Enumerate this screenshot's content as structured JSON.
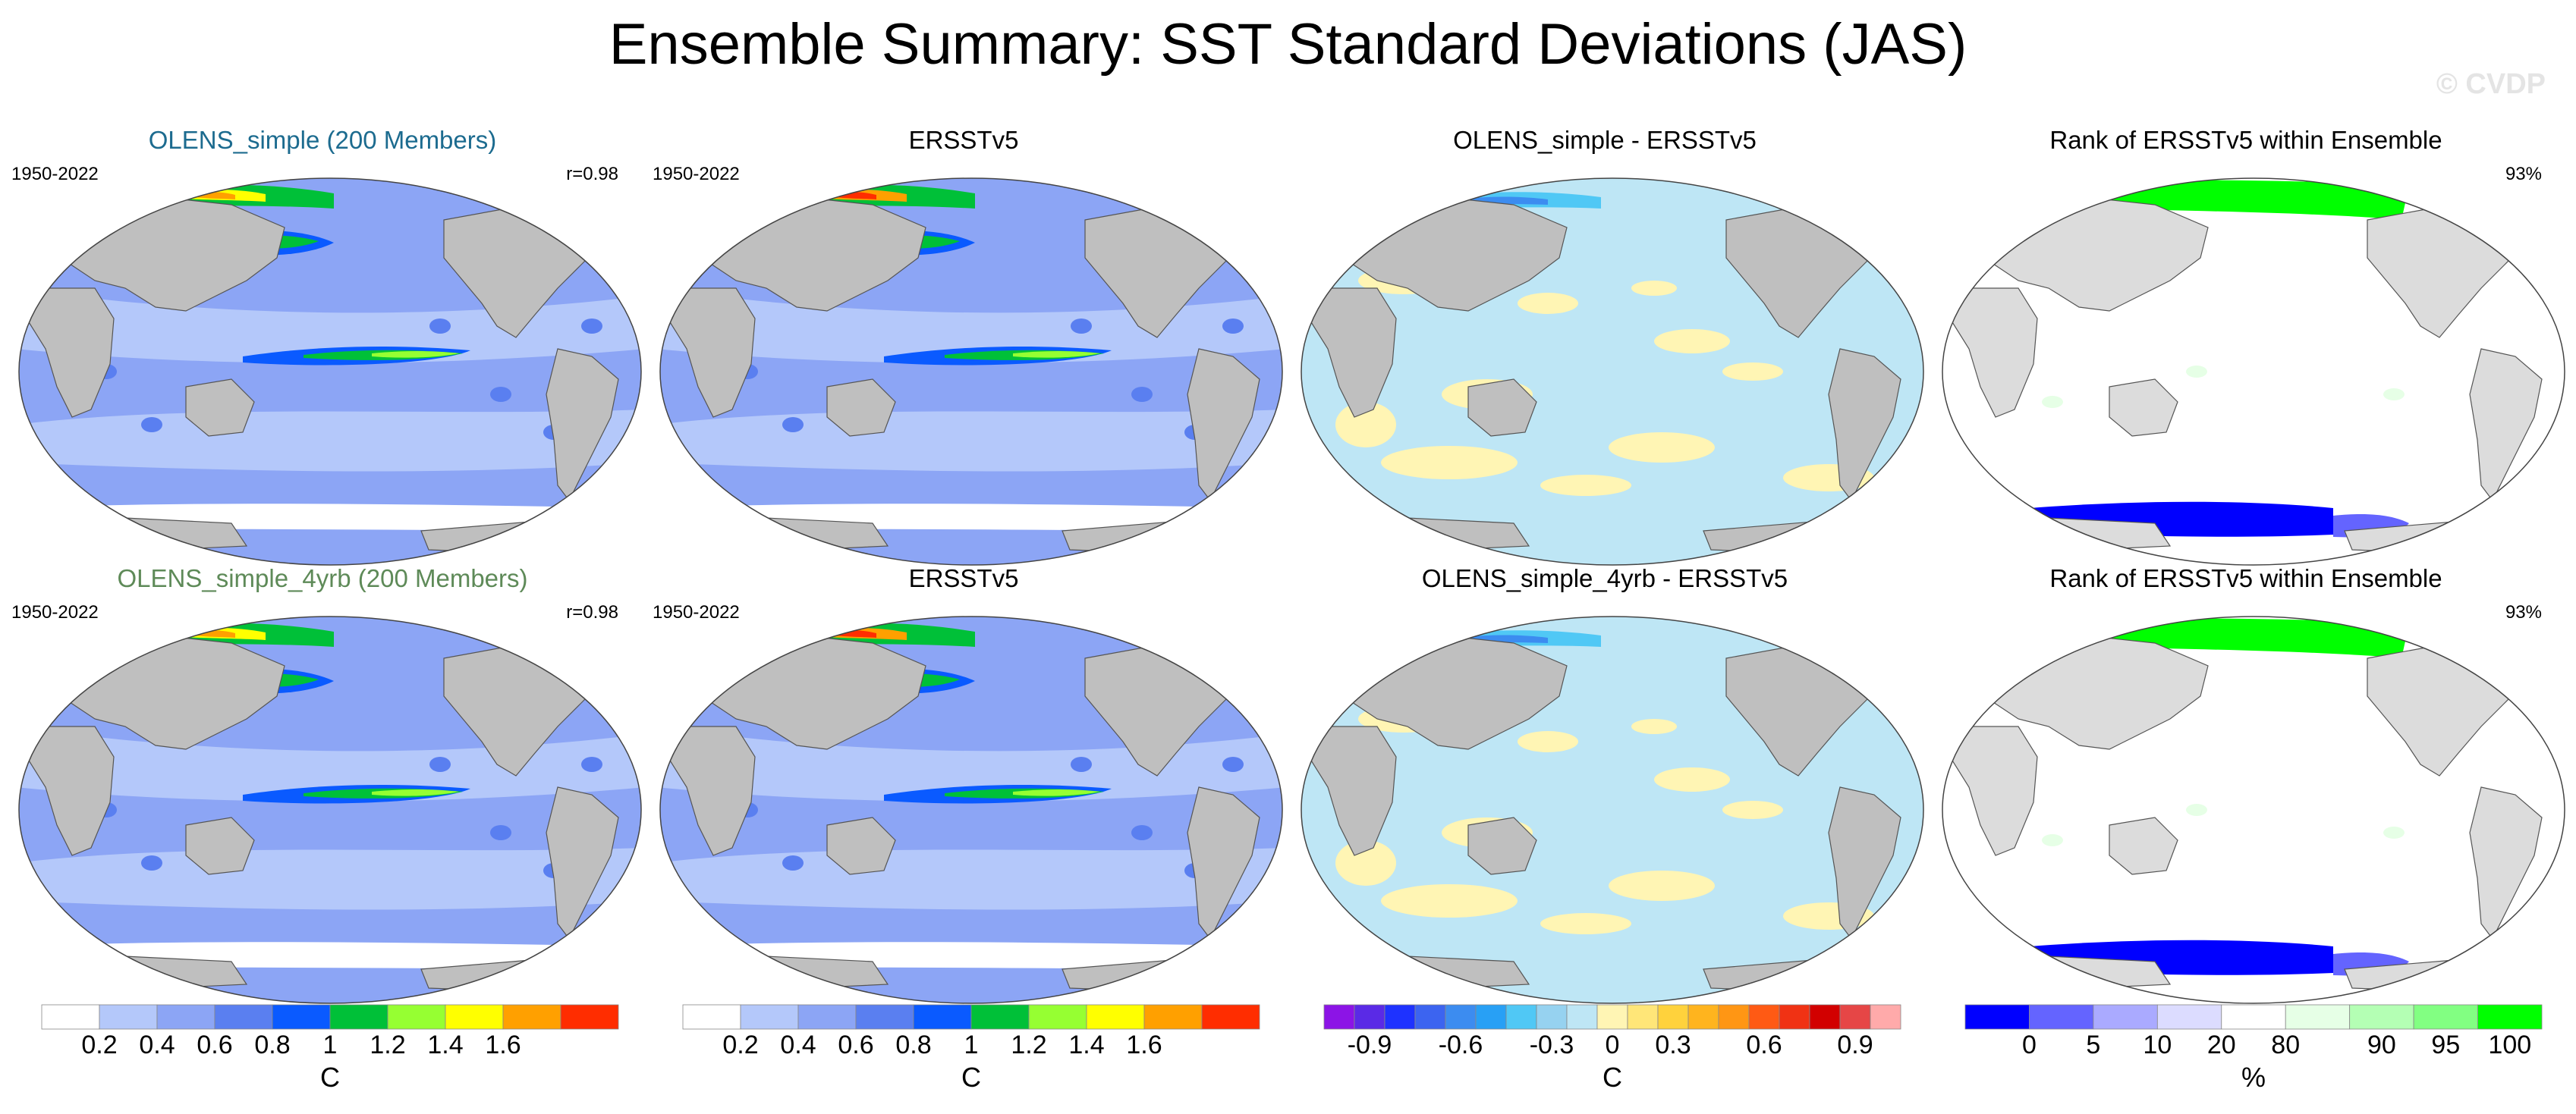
{
  "title": "Ensemble Summary: SST Standard Deviations (JAS)",
  "watermark": "© CVDP",
  "colors": {
    "land": "#bfbfbf",
    "land_light": "#dcdcdc",
    "ocean_white": "#ffffff",
    "sd_levels": [
      "#ffffff",
      "#b4c8fa",
      "#8ca5f5",
      "#5a7ff0",
      "#0a5aff",
      "#00c038",
      "#96ff32",
      "#ffff00",
      "#ffa000",
      "#ff2d00"
    ],
    "diff_levels": [
      "#8c14e6",
      "#5a2ae6",
      "#1e32ff",
      "#3c64f0",
      "#3c8cf0",
      "#28a0f5",
      "#50c8f5",
      "#96d2f0",
      "#bee6f5",
      "#fff5b4",
      "#ffe678",
      "#ffd23c",
      "#ffb41e",
      "#ff9614",
      "#ff5a14",
      "#f03214",
      "#d20000",
      "#e64646",
      "#ffaaaa"
    ],
    "rank_levels": [
      "#0000ff",
      "#6464ff",
      "#aaaaff",
      "#dcdcff",
      "#ffffff",
      "#e6ffe6",
      "#b4ffb4",
      "#82ff82",
      "#00ff00"
    ]
  },
  "panels": [
    {
      "id": "p1",
      "title": "OLENS_simple (200 Members)",
      "title_color": "blue",
      "left": "1950-2022",
      "right": "r=0.98",
      "kind": "sd"
    },
    {
      "id": "p2",
      "title": "ERSSTv5",
      "left": "1950-2022",
      "right": "",
      "kind": "sd_obs"
    },
    {
      "id": "p3",
      "title": "OLENS_simple - ERSSTv5",
      "left": "",
      "right": "",
      "kind": "diff"
    },
    {
      "id": "p4",
      "title": "Rank of ERSSTv5 within Ensemble",
      "left": "",
      "right": "93%",
      "kind": "rank"
    },
    {
      "id": "p5",
      "title": "OLENS_simple_4yrb (200 Members)",
      "title_color": "green",
      "left": "1950-2022",
      "right": "r=0.98",
      "kind": "sd"
    },
    {
      "id": "p6",
      "title": "ERSSTv5",
      "left": "1950-2022",
      "right": "",
      "kind": "sd_obs"
    },
    {
      "id": "p7",
      "title": "OLENS_simple_4yrb - ERSSTv5",
      "left": "",
      "right": "",
      "kind": "diff"
    },
    {
      "id": "p8",
      "title": "Rank of ERSSTv5 within Ensemble",
      "left": "",
      "right": "93%",
      "kind": "rank"
    }
  ],
  "colorbars": [
    {
      "id": "cb1",
      "unit": "C",
      "kind": "sd",
      "tick_labels": [
        "0.2",
        "0.4",
        "0.6",
        "0.8",
        "1",
        "1.2",
        "1.4",
        "1.6"
      ]
    },
    {
      "id": "cb2",
      "unit": "C",
      "kind": "sd",
      "tick_labels": [
        "0.2",
        "0.4",
        "0.6",
        "0.8",
        "1",
        "1.2",
        "1.4",
        "1.6"
      ]
    },
    {
      "id": "cb3",
      "unit": "C",
      "kind": "diff",
      "tick_labels": [
        "-0.9",
        "-0.6",
        "-0.3",
        "0",
        "0.3",
        "0.6",
        "0.9"
      ]
    },
    {
      "id": "cb4",
      "unit": "%",
      "kind": "rank",
      "tick_labels": [
        "0",
        "5",
        "10",
        "20",
        "80",
        "90",
        "95",
        "100"
      ]
    }
  ],
  "chart_data": {
    "type": "heatmap",
    "title": "Ensemble Summary: SST Standard Deviations (JAS)",
    "season": "JAS",
    "period": "1950-2022",
    "panels": [
      {
        "title": "OLENS_simple (200 Members)",
        "pattern_correlation": 0.98,
        "variable": "SST standard deviation",
        "units": "C"
      },
      {
        "title": "ERSSTv5",
        "variable": "SST standard deviation",
        "units": "C"
      },
      {
        "title": "OLENS_simple - ERSSTv5",
        "variable": "SST standard deviation difference",
        "units": "C"
      },
      {
        "title": "Rank of ERSSTv5 within Ensemble",
        "percent_area": 93,
        "units": "%"
      },
      {
        "title": "OLENS_simple_4yrb (200 Members)",
        "pattern_correlation": 0.98,
        "variable": "SST standard deviation",
        "units": "C"
      },
      {
        "title": "ERSSTv5",
        "variable": "SST standard deviation",
        "units": "C"
      },
      {
        "title": "OLENS_simple_4yrb - ERSSTv5",
        "variable": "SST standard deviation difference",
        "units": "C"
      },
      {
        "title": "Rank of ERSSTv5 within Ensemble",
        "percent_area": 93,
        "units": "%"
      }
    ],
    "sd_contour_levels": [
      0.2,
      0.4,
      0.6,
      0.8,
      1.0,
      1.2,
      1.4,
      1.6
    ],
    "diff_contour_levels": [
      -0.9,
      -0.8,
      -0.7,
      -0.6,
      -0.5,
      -0.4,
      -0.3,
      -0.2,
      -0.1,
      0,
      0.1,
      0.2,
      0.3,
      0.4,
      0.5,
      0.6,
      0.7,
      0.8,
      0.9
    ],
    "rank_levels": [
      0,
      5,
      10,
      20,
      80,
      90,
      95,
      100
    ]
  }
}
